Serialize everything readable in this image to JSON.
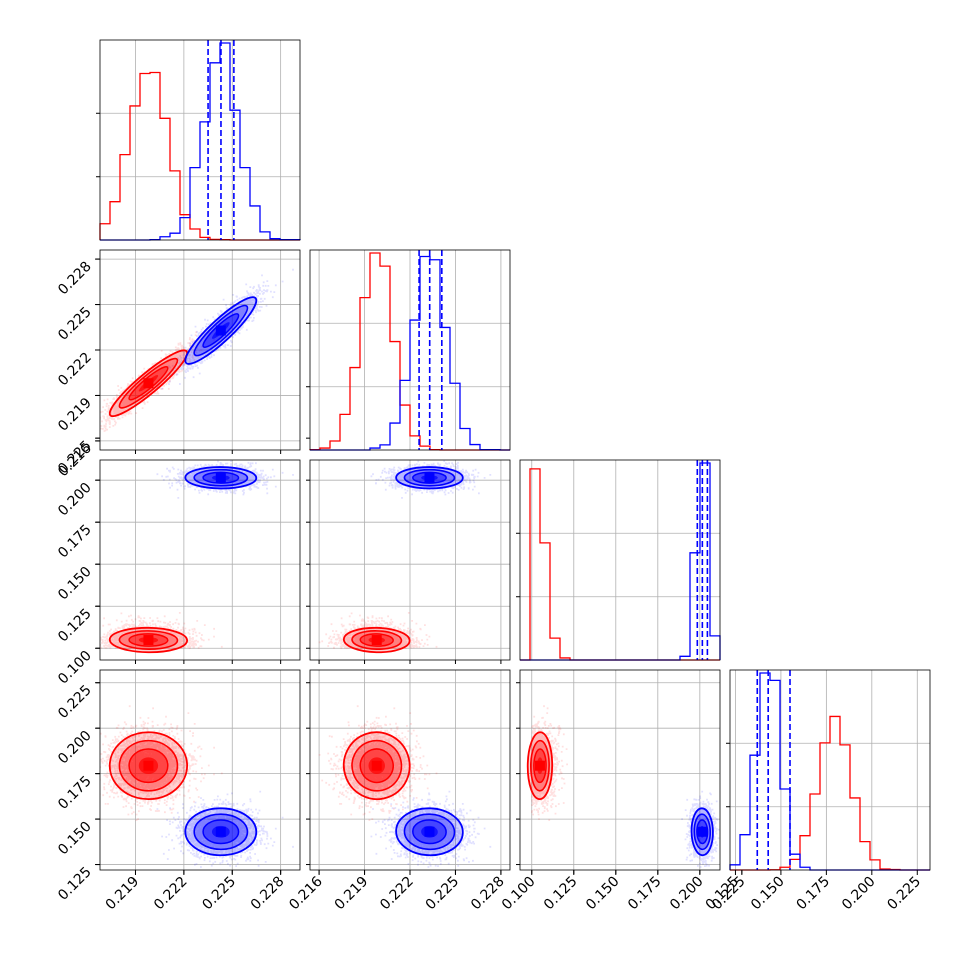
{
  "chart_data": {
    "type": "corner",
    "parameters": 4,
    "grid": true,
    "series": [
      {
        "color": "#ff0000",
        "means": [
          0.2198,
          0.2198,
          0.102,
          0.179
        ],
        "sds": [
          0.0012,
          0.0011,
          0.0055,
          0.009
        ],
        "corr": [
          [
            1,
            0.92,
            0,
            0
          ],
          [
            0.92,
            1,
            0,
            0
          ],
          [
            0,
            0,
            1,
            -0.3
          ],
          [
            0,
            0,
            -0.3,
            1
          ]
        ],
        "skew": [
          0,
          0,
          1,
          0
        ]
      },
      {
        "color": "#0000ff",
        "means": [
          0.2243,
          0.2233,
          0.2015,
          0.143
        ],
        "sds": [
          0.0011,
          0.0011,
          0.0032,
          0.0065
        ],
        "corr": [
          [
            1,
            0.9,
            0,
            0
          ],
          [
            0.9,
            1,
            0,
            0
          ],
          [
            0,
            0,
            1,
            0
          ],
          [
            0,
            0,
            0,
            1
          ]
        ],
        "skew": [
          0,
          0,
          0,
          0
        ],
        "quantile_lines": [
          [
            0.2235,
            0.2243,
            0.2251
          ],
          [
            0.2226,
            0.2233,
            0.2241
          ],
          [
            0.1985,
            0.2015,
            0.2045
          ],
          [
            0.137,
            0.143,
            0.155
          ]
        ]
      }
    ],
    "axes": [
      {
        "range": [
          0.2168,
          0.2292
        ],
        "ticks": [
          "0.219",
          "0.222",
          "0.225",
          "0.228"
        ]
      },
      {
        "range": [
          0.2154,
          0.2286
        ],
        "ticks": [
          "0.216",
          "0.219",
          "0.222",
          "0.225",
          "0.228"
        ]
      },
      {
        "range": [
          0.093,
          0.212
        ],
        "ticks": [
          "0.100",
          "0.125",
          "0.150",
          "0.175",
          "0.200",
          "0.225"
        ]
      },
      {
        "range": [
          0.122,
          0.232
        ],
        "ticks": [
          "0.125",
          "0.150",
          "0.175",
          "0.200",
          "0.225"
        ]
      }
    ]
  }
}
